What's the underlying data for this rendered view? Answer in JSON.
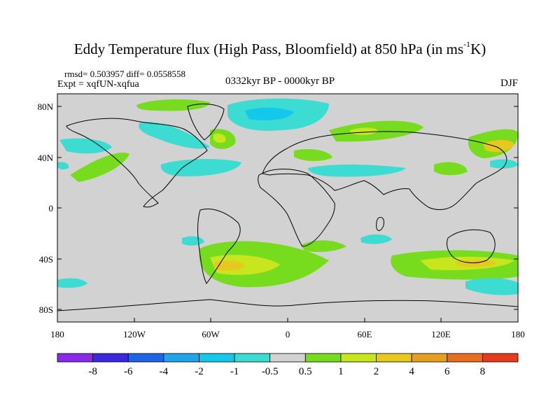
{
  "header": {
    "title_main": "Eddy Temperature flux (High Pass, Bloomfield) at 850 hPa (in ms",
    "title_sup": "-1",
    "title_end": "K)",
    "stats": "rmsd= 0.503957 diff= 0.0558558",
    "experiment": "Expt = xqfUN-xqfua",
    "period": "0332kyr BP - 0000kyr BP",
    "season": "DJF"
  },
  "axes": {
    "y_ticks": [
      "80N",
      "40N",
      "0",
      "40S",
      "80S"
    ],
    "x_ticks": [
      "180",
      "120W",
      "60W",
      "0",
      "60E",
      "120E",
      "180"
    ]
  },
  "colorbar": {
    "labels": [
      "-8",
      "-6",
      "-4",
      "-2",
      "-1",
      "-0.5",
      "0.5",
      "1",
      "2",
      "4",
      "6",
      "8"
    ],
    "colors": [
      "#8c28e8",
      "#3c28e0",
      "#1e64e6",
      "#1ea5ea",
      "#14c8ec",
      "#3cdcd2",
      "#d2d2d2",
      "#78dc1e",
      "#c8e61e",
      "#e6c81e",
      "#e6a01e",
      "#e66e1e",
      "#e63c1e"
    ]
  }
}
